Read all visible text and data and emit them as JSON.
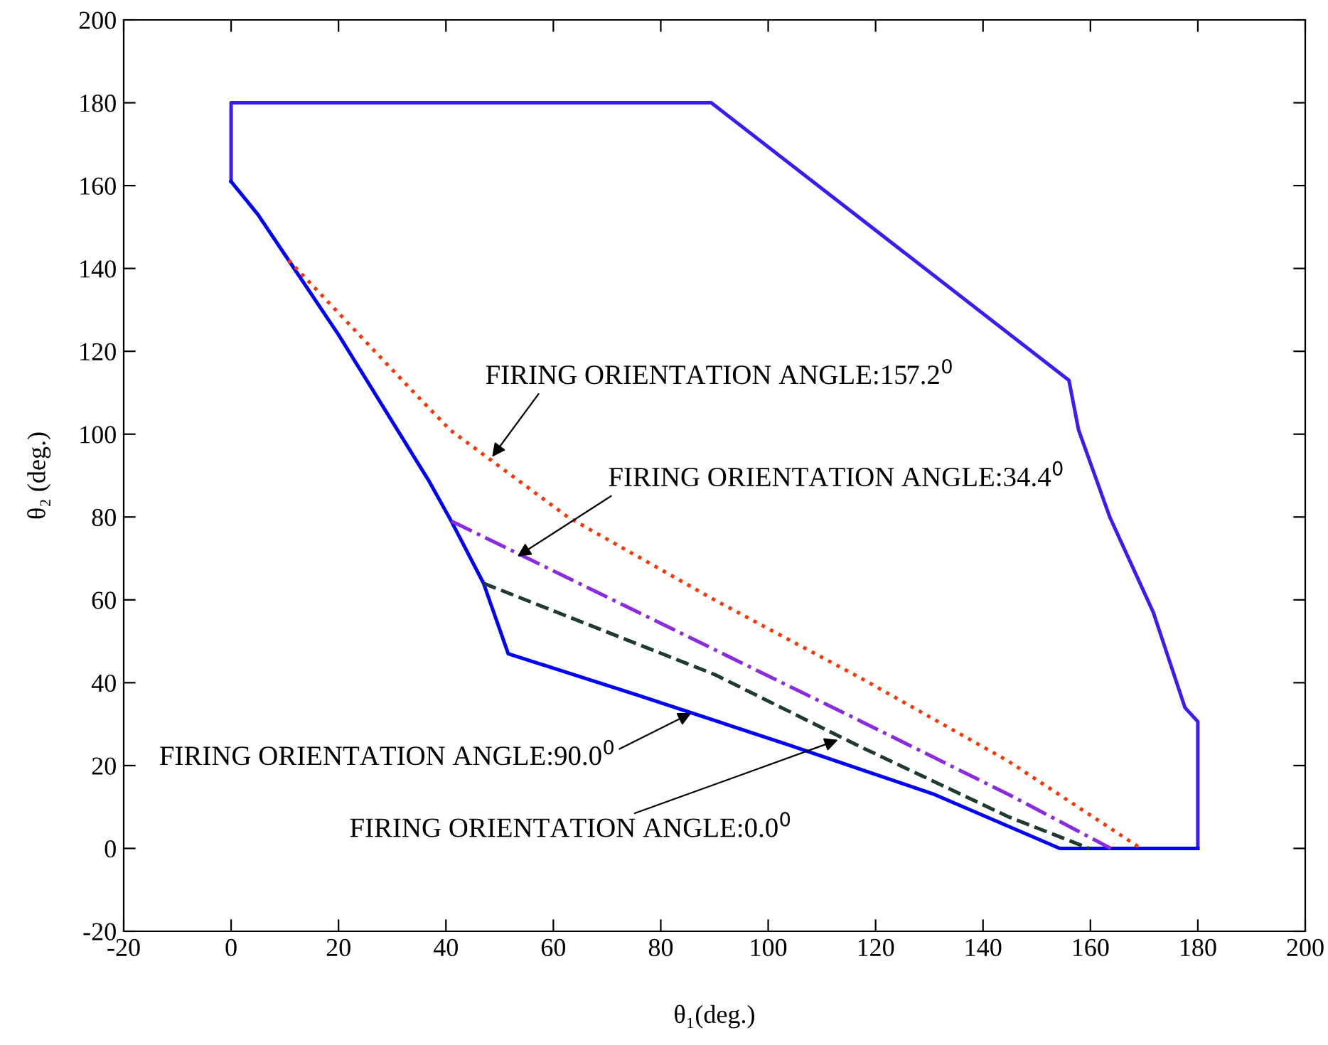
{
  "chart_data": {
    "type": "line",
    "xlabel": "θ₁(deg.)",
    "ylabel": "θ₂ (deg.)",
    "xlim": [
      -20,
      200
    ],
    "xticks": [
      -20,
      0,
      20,
      40,
      60,
      80,
      100,
      120,
      140,
      160,
      180,
      200
    ],
    "ylim": [
      -20,
      200
    ],
    "yticks": [
      -20,
      0,
      20,
      40,
      60,
      80,
      100,
      120,
      140,
      160,
      180,
      200
    ],
    "grid": false,
    "legend": false,
    "series": [
      {
        "color": "#3a1cf8",
        "line_style": "solid",
        "x": [
          0,
          0,
          89.4,
          156,
          157.8,
          163.6,
          171.7,
          177.6,
          180,
          180
        ],
        "values": [
          161,
          180,
          180,
          113,
          101,
          80,
          57,
          34,
          30.6,
          0
        ]
      },
      {
        "color": "#0000ff",
        "line_style": "solid",
        "x": [
          0,
          5,
          10.7,
          20,
          36.7,
          41,
          47,
          51.6,
          75.7,
          103.8,
          131,
          154.3,
          180
        ],
        "values": [
          161,
          153,
          142,
          124,
          89,
          79,
          64,
          47,
          37,
          25,
          13,
          0,
          0
        ]
      },
      {
        "color": "#1e3b2e",
        "line_style": "dashed",
        "x": [
          47,
          90,
          117.4,
          144.8,
          159.8
        ],
        "values": [
          64,
          42,
          24.4,
          7.6,
          0
        ]
      },
      {
        "color": "#ff3300",
        "line_style": "dotted",
        "x": [
          10.7,
          32.6,
          40.8,
          62.7,
          90,
          117.4,
          144.8,
          169.4
        ],
        "values": [
          142,
          112,
          101,
          80,
          60,
          41,
          21,
          0
        ]
      },
      {
        "color": "#8a2be2",
        "line_style": "dashdot",
        "x": [
          41,
          54.5,
          90,
          117.4,
          144.8,
          163.8
        ],
        "values": [
          79,
          70.5,
          48,
          30.6,
          13,
          0
        ]
      }
    ],
    "annotations": [
      {
        "text": "FIRING ORIENTATION ANGLE:157.2$^{0}$",
        "x": 48.6,
        "y": 94.5
      },
      {
        "text": "FIRING ORIENTATION ANGLE:34.4$^{0}$",
        "x": 53.3,
        "y": 70.5
      },
      {
        "text": "FIRING ORIENTATION ANGLE:90.0$^{0}$",
        "x": 85.7,
        "y": 32.7
      },
      {
        "text": "FIRING ORIENTATION ANGLE:0.0$^{0}$",
        "x": 113,
        "y": 26.2
      }
    ]
  }
}
